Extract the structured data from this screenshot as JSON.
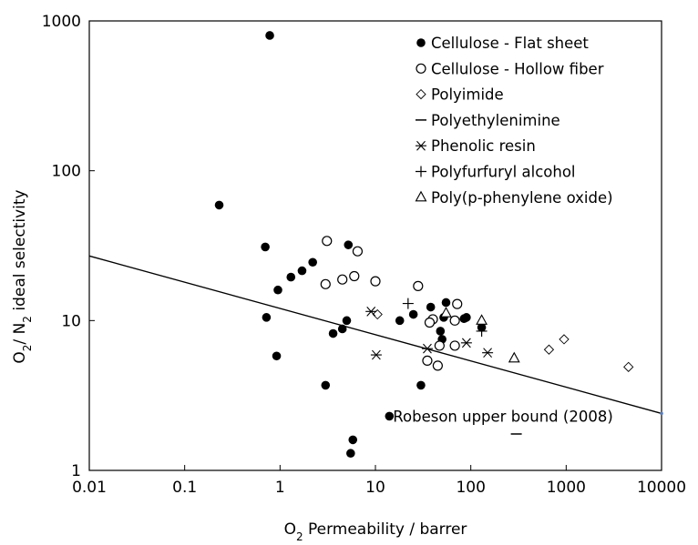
{
  "chart_data": {
    "type": "scatter",
    "title": "",
    "xlabel": {
      "main": "O",
      "sub": "2",
      "rest": " Permeability / barrer"
    },
    "ylabel": {
      "a": "O",
      "a_sub": "2",
      "b": "/ N",
      "b_sub": "2",
      "rest": " ideal selectivity"
    },
    "xscale": "log",
    "yscale": "log",
    "xlim": [
      0.01,
      10000
    ],
    "ylim": [
      1,
      1000
    ],
    "x_ticks": [
      {
        "value": 0.01,
        "label": "0.01"
      },
      {
        "value": 0.1,
        "label": "0.1"
      },
      {
        "value": 1,
        "label": "1"
      },
      {
        "value": 10,
        "label": "10"
      },
      {
        "value": 100,
        "label": "100"
      },
      {
        "value": 1000,
        "label": "1000"
      },
      {
        "value": 10000,
        "label": "10000"
      }
    ],
    "y_ticks": [
      {
        "value": 1,
        "label": "1"
      },
      {
        "value": 10,
        "label": "10"
      },
      {
        "value": 100,
        "label": "100"
      },
      {
        "value": 1000,
        "label": "1000"
      }
    ],
    "grid": false,
    "legend_position": "top-right",
    "series": [
      {
        "name": "Cellulose - Flat sheet",
        "marker": "filled-circle",
        "points": [
          [
            0.78,
            800
          ],
          [
            0.23,
            59
          ],
          [
            0.7,
            31
          ],
          [
            5.2,
            32
          ],
          [
            2.2,
            24.5
          ],
          [
            1.7,
            21.5
          ],
          [
            1.3,
            19.5
          ],
          [
            0.95,
            16
          ],
          [
            0.72,
            10.5
          ],
          [
            0.92,
            5.8
          ],
          [
            3.0,
            3.7
          ],
          [
            3.6,
            8.2
          ],
          [
            4.5,
            8.8
          ],
          [
            5.0,
            10
          ],
          [
            5.8,
            1.6
          ],
          [
            5.5,
            1.3
          ],
          [
            18,
            10
          ],
          [
            25,
            11
          ],
          [
            38,
            12.3
          ],
          [
            55,
            13.2
          ],
          [
            30,
            3.7
          ],
          [
            52,
            10.5
          ],
          [
            48,
            8.5
          ],
          [
            50,
            7.5
          ],
          [
            90,
            10.5
          ],
          [
            85,
            10.3
          ],
          [
            130,
            9.0
          ]
        ]
      },
      {
        "name": "Cellulose - Hollow fiber",
        "marker": "open-circle",
        "points": [
          [
            3.1,
            34
          ],
          [
            6.5,
            29
          ],
          [
            3.0,
            17.5
          ],
          [
            4.5,
            18.8
          ],
          [
            6.0,
            19.8
          ],
          [
            10,
            18.3
          ],
          [
            28,
            17
          ],
          [
            72,
            12.9
          ],
          [
            40,
            10.2
          ],
          [
            37,
            9.7
          ],
          [
            68,
            10.0
          ],
          [
            35,
            5.4
          ],
          [
            45,
            5.0
          ],
          [
            47,
            6.8
          ],
          [
            68,
            6.8
          ]
        ]
      },
      {
        "name": "Polyimide",
        "marker": "diamond",
        "points": [
          [
            10.5,
            11
          ],
          [
            660,
            6.4
          ],
          [
            950,
            7.5
          ],
          [
            4500,
            4.9
          ]
        ]
      },
      {
        "name": "Polyethylenimine",
        "marker": "dash",
        "points": [
          [
            300,
            1.75
          ]
        ]
      },
      {
        "name": "Phenolic resin",
        "marker": "asterisk",
        "points": [
          [
            9,
            11.5
          ],
          [
            10.2,
            5.9
          ],
          [
            35,
            6.5
          ],
          [
            90,
            7.1
          ],
          [
            150,
            6.1
          ]
        ]
      },
      {
        "name": "Polyfurfuryl alcohol",
        "marker": "plus",
        "points": [
          [
            22,
            13
          ],
          [
            130,
            8.5
          ]
        ]
      },
      {
        "name": "Poly(p-phenylene oxide)",
        "marker": "open-triangle",
        "points": [
          [
            55,
            11.2
          ],
          [
            130,
            10
          ],
          [
            285,
            5.6
          ]
        ]
      }
    ],
    "upper_bound": {
      "label": "Robeson upper bound (2008)",
      "line": [
        [
          0.01,
          27
        ],
        [
          10000,
          2.4
        ]
      ],
      "label_anchor": [
        14,
        2.3
      ]
    },
    "colors": {
      "marker": "#000000",
      "line": "#000000",
      "axis": "#000000",
      "end_dot": "#5b7bb5"
    }
  }
}
